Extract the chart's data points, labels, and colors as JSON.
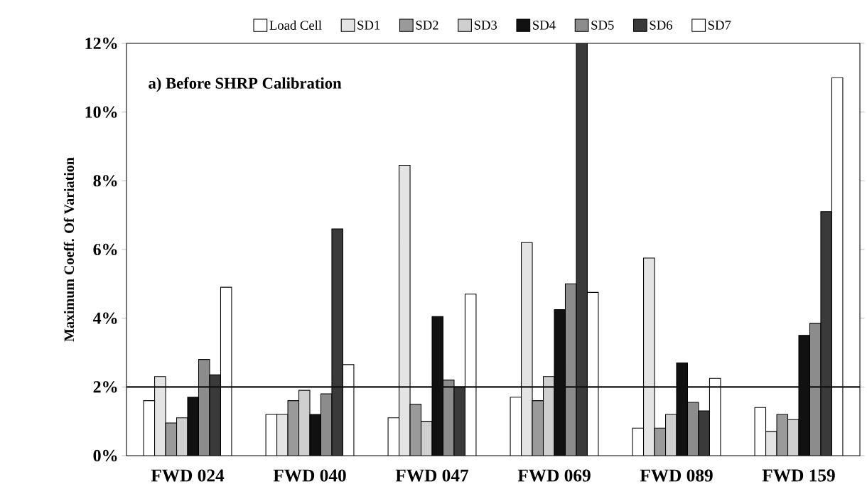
{
  "chart_data": {
    "type": "bar",
    "title": "a) Before SHRP Calibration",
    "ylabel": "Maximum Coeff. Of Variation",
    "categories": [
      "FWD 024",
      "FWD 040",
      "FWD 047",
      "FWD 069",
      "FWD 089",
      "FWD 159"
    ],
    "series": [
      {
        "name": "Load Cell",
        "color": "#ffffff",
        "values": [
          1.6,
          1.2,
          1.1,
          1.7,
          0.8,
          1.4
        ]
      },
      {
        "name": "SD1",
        "color": "#e4e4e4",
        "values": [
          2.3,
          1.2,
          8.45,
          6.2,
          5.75,
          0.7
        ]
      },
      {
        "name": "SD2",
        "color": "#9a9a9a",
        "values": [
          0.95,
          1.6,
          1.5,
          1.6,
          0.8,
          1.2
        ]
      },
      {
        "name": "SD3",
        "color": "#cfcfcf",
        "values": [
          1.1,
          1.9,
          1.0,
          2.3,
          1.2,
          1.05
        ]
      },
      {
        "name": "SD4",
        "color": "#111111",
        "values": [
          1.7,
          1.2,
          4.05,
          4.25,
          2.7,
          3.5
        ]
      },
      {
        "name": "SD5",
        "color": "#8c8c8c",
        "values": [
          2.8,
          1.8,
          2.2,
          5.0,
          1.55,
          3.85
        ]
      },
      {
        "name": "SD6",
        "color": "#3a3a3a",
        "values": [
          2.35,
          6.6,
          2.0,
          12,
          1.3,
          7.1
        ]
      },
      {
        "name": "SD7",
        "color": "#ffffff",
        "values": [
          4.9,
          2.65,
          4.7,
          4.75,
          2.25,
          11.0
        ]
      }
    ],
    "ylim": [
      0,
      12
    ],
    "yticks": [
      {
        "value": 0,
        "label": "0%"
      },
      {
        "value": 2,
        "label": "2%"
      },
      {
        "value": 4,
        "label": "4%"
      },
      {
        "value": 6,
        "label": "6%"
      },
      {
        "value": 8,
        "label": "8%"
      },
      {
        "value": 10,
        "label": "10%"
      },
      {
        "value": 12,
        "label": "12%"
      }
    ],
    "ref_lines": [
      {
        "axis": "y",
        "value": 2,
        "color": "#111111"
      }
    ],
    "legend": "top",
    "grid": false
  }
}
